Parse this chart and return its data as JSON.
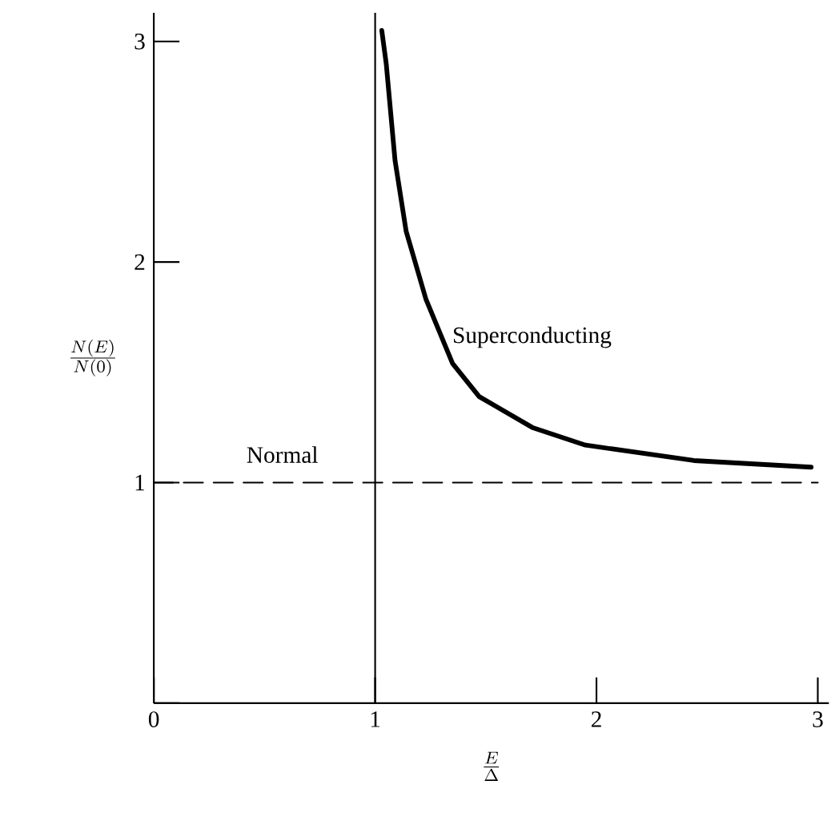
{
  "chart_data": {
    "type": "line",
    "xlabel": "\\frac{E}{\\Delta}",
    "ylabel": "\\frac{N(E)}{N(0)}",
    "series": [
      {
        "name": "Superconducting",
        "color": "#000000",
        "line_style": "solid",
        "x": [
          1.03,
          1.05,
          1.09,
          1.14,
          1.23,
          1.35,
          1.47,
          1.71,
          1.95,
          2.44,
          2.97
        ],
        "values": [
          3.05,
          2.9,
          2.46,
          2.14,
          1.83,
          1.54,
          1.39,
          1.25,
          1.17,
          1.1,
          1.07
        ]
      },
      {
        "name": "Normal",
        "color": "#000000",
        "line_style": "dashed",
        "x": [
          0,
          3
        ],
        "values": [
          1,
          1
        ]
      }
    ],
    "ref_lines": [
      {
        "axis": "x",
        "value": 1,
        "color": "#000000",
        "line_style": "solid"
      }
    ],
    "xlim": [
      0,
      3.05
    ],
    "ylim": [
      0,
      3.13
    ],
    "xticks": [
      0,
      1,
      2,
      3
    ],
    "yticks": [
      {
        "value": 0,
        "label": null
      },
      1,
      2,
      3
    ],
    "grid": false,
    "legend": false,
    "marker": "none"
  }
}
